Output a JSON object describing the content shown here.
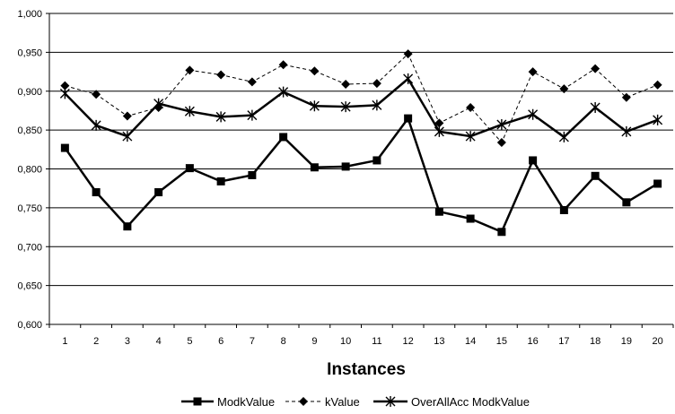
{
  "chart_data": {
    "type": "line",
    "title": "",
    "xlabel": "Instances",
    "ylabel": "",
    "categories": [
      "1",
      "2",
      "3",
      "4",
      "5",
      "6",
      "7",
      "8",
      "9",
      "10",
      "11",
      "12",
      "13",
      "14",
      "15",
      "16",
      "17",
      "18",
      "19",
      "20"
    ],
    "ylim": [
      0.6,
      1.0
    ],
    "yticks": [
      "0,600",
      "0,650",
      "0,700",
      "0,750",
      "0,800",
      "0,850",
      "0,900",
      "0,950",
      "1,000"
    ],
    "ytick_values": [
      0.6,
      0.65,
      0.7,
      0.75,
      0.8,
      0.85,
      0.9,
      0.95,
      1.0
    ],
    "grid": "horizontal",
    "legend_position": "bottom",
    "series": [
      {
        "name": "ModkValue",
        "marker": "square",
        "line": "solid",
        "color": "#000000",
        "values": [
          0.827,
          0.77,
          0.726,
          0.77,
          0.801,
          0.784,
          0.792,
          0.841,
          0.802,
          0.803,
          0.811,
          0.865,
          0.745,
          0.736,
          0.719,
          0.811,
          0.747,
          0.791,
          0.757,
          0.781
        ]
      },
      {
        "name": "kValue",
        "marker": "diamond",
        "line": "dashed",
        "color": "#000000",
        "values": [
          0.907,
          0.896,
          0.868,
          0.879,
          0.927,
          0.921,
          0.912,
          0.934,
          0.926,
          0.909,
          0.91,
          0.948,
          0.859,
          0.879,
          0.834,
          0.925,
          0.903,
          0.929,
          0.892,
          0.908
        ]
      },
      {
        "name": "OverAllAcc ModkValue",
        "marker": "asterisk",
        "line": "solid",
        "color": "#000000",
        "values": [
          0.897,
          0.856,
          0.842,
          0.884,
          0.874,
          0.867,
          0.869,
          0.899,
          0.881,
          0.88,
          0.882,
          0.916,
          0.848,
          0.842,
          0.857,
          0.87,
          0.841,
          0.879,
          0.848,
          0.863
        ]
      }
    ]
  }
}
